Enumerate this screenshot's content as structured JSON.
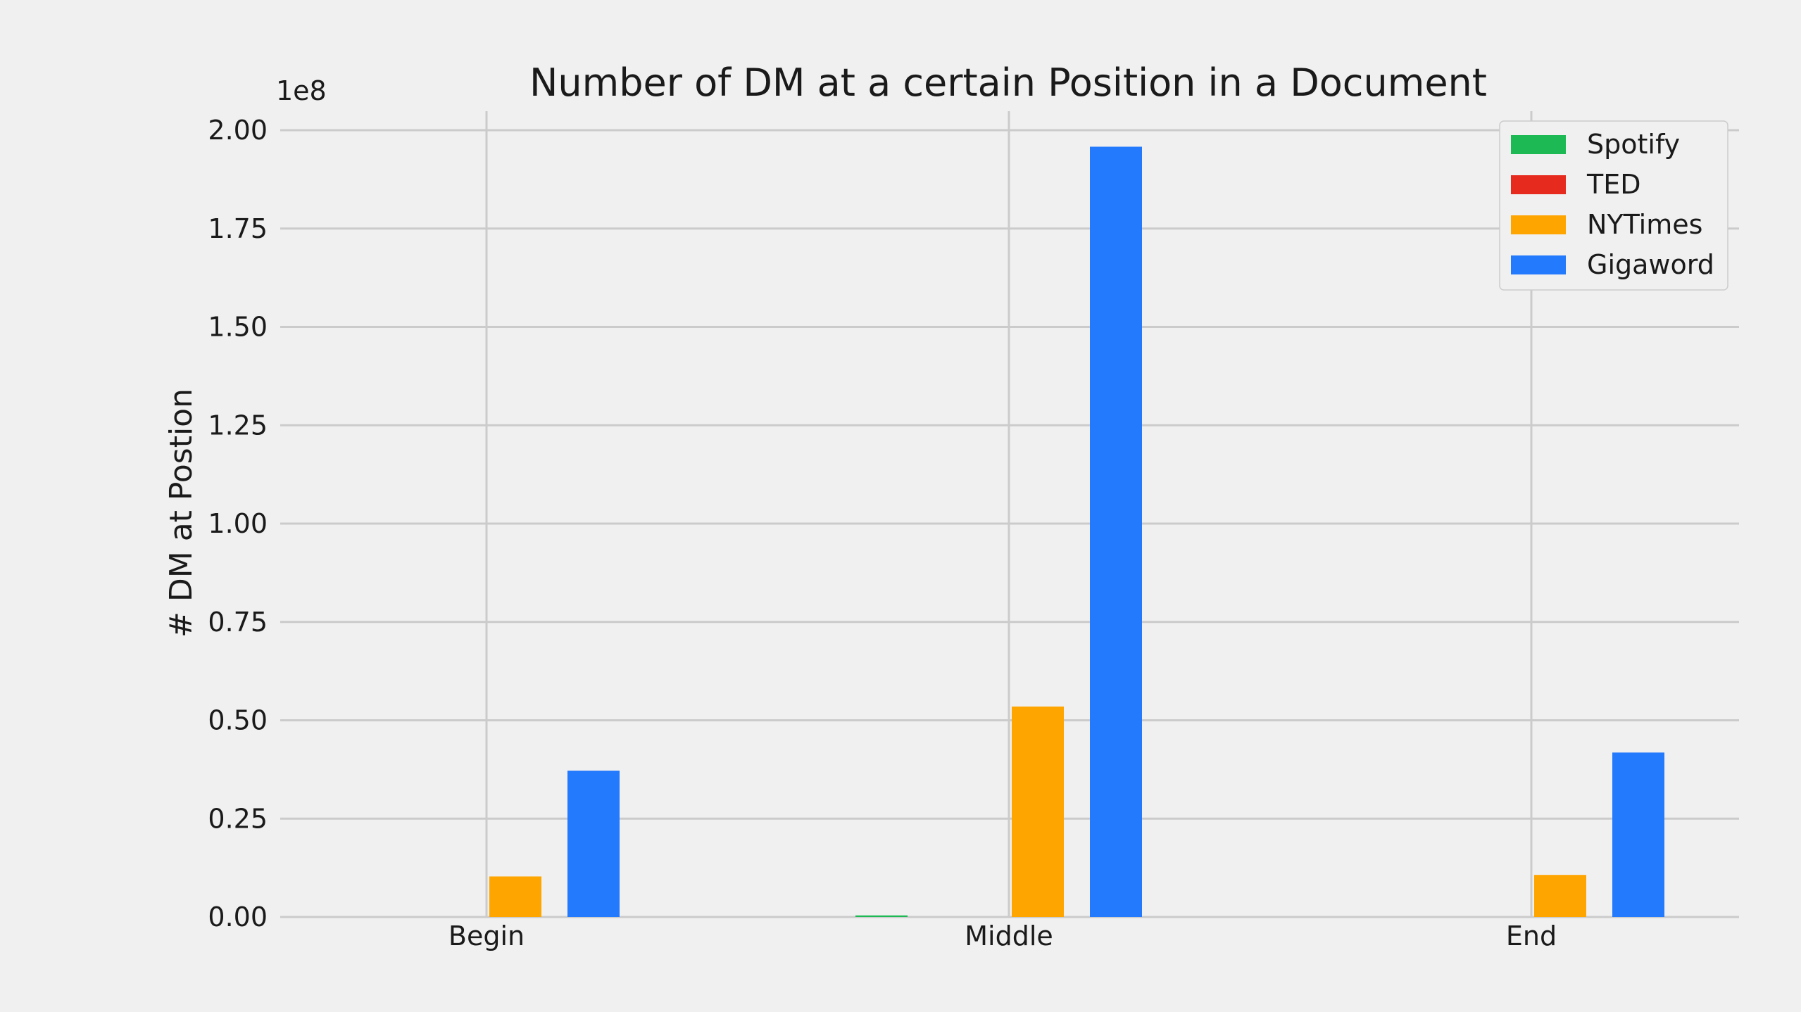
{
  "chart_data": {
    "type": "bar",
    "title": "Number of DM at a certain Position in a Document",
    "xlabel": "",
    "ylabel": "# DM at Postion",
    "y_offset_label": "1e8",
    "categories": [
      "Begin",
      "Middle",
      "End"
    ],
    "ylim": [
      0,
      2.05
    ],
    "y_scale": "x1e8",
    "y_ticks": [
      0.0,
      0.25,
      0.5,
      0.75,
      1.0,
      1.25,
      1.5,
      1.75,
      2.0
    ],
    "y_tick_labels": [
      "0.00",
      "0.25",
      "0.50",
      "0.75",
      "1.00",
      "1.25",
      "1.50",
      "1.75",
      "2.00"
    ],
    "grid": true,
    "legend_position": "top-right",
    "series": [
      {
        "name": "Spotify",
        "color": "#1db954",
        "values": [
          0.0,
          0.004,
          0.0
        ]
      },
      {
        "name": "TED",
        "color": "#e62b1e",
        "values": [
          0.0,
          0.0,
          0.0
        ]
      },
      {
        "name": "NYTimes",
        "color": "#ffa500",
        "values": [
          0.103,
          0.535,
          0.107
        ]
      },
      {
        "name": "Gigaword",
        "color": "#247afd",
        "values": [
          0.372,
          1.958,
          0.418
        ]
      }
    ]
  }
}
